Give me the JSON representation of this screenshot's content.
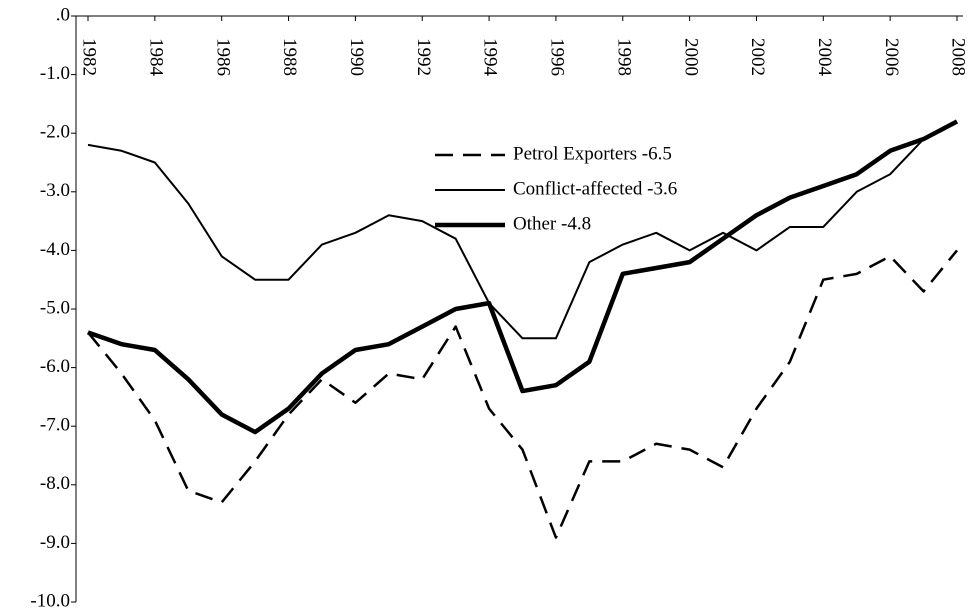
{
  "chart_data": {
    "type": "line",
    "x": [
      1982,
      1983,
      1984,
      1985,
      1986,
      1987,
      1988,
      1989,
      1990,
      1991,
      1992,
      1993,
      1994,
      1995,
      1996,
      1997,
      1998,
      1999,
      2000,
      2001,
      2002,
      2003,
      2004,
      2005,
      2006,
      2007,
      2008
    ],
    "xlim": [
      1982,
      2008
    ],
    "xticks": [
      1982,
      1984,
      1986,
      1988,
      1990,
      1992,
      1994,
      1996,
      1998,
      2000,
      2002,
      2004,
      2006,
      2008
    ],
    "ylim": [
      -10,
      0
    ],
    "yticks": [
      {
        "value": 0,
        "label": ".0"
      },
      {
        "value": -1,
        "label": "-1.0"
      },
      {
        "value": -2,
        "label": "-2.0"
      },
      {
        "value": -3,
        "label": "-3.0"
      },
      {
        "value": -4,
        "label": "-4.0"
      },
      {
        "value": -5,
        "label": "-5.0"
      },
      {
        "value": -6,
        "label": "-6.0"
      },
      {
        "value": -7,
        "label": "-7.0"
      },
      {
        "value": -8,
        "label": "-8.0"
      },
      {
        "value": -9,
        "label": "-9.0"
      },
      {
        "value": -10,
        "label": "-10.0"
      }
    ],
    "series": [
      {
        "name": "Petrol Exporters -6.5",
        "color": "#000000",
        "style": "dashed",
        "values": [
          -5.4,
          -6.1,
          -6.9,
          -8.1,
          -8.3,
          -7.6,
          -6.8,
          -6.2,
          -6.6,
          -6.1,
          -6.2,
          -5.3,
          -6.7,
          -7.4,
          -8.9,
          -7.6,
          -7.6,
          -7.3,
          -7.4,
          -7.7,
          -6.7,
          -5.9,
          -4.5,
          -4.4,
          -4.1,
          -4.7,
          -4.0
        ]
      },
      {
        "name": "Conflict-affected -3.6",
        "color": "#000000",
        "style": "thin",
        "values": [
          -2.2,
          -2.3,
          -2.5,
          -3.2,
          -4.1,
          -4.5,
          -4.5,
          -3.9,
          -3.7,
          -3.4,
          -3.5,
          -3.8,
          -4.9,
          -5.5,
          -5.5,
          -4.2,
          -3.9,
          -3.7,
          -4.0,
          -3.7,
          -4.0,
          -3.6,
          -3.6,
          -3.0,
          -2.7,
          -2.1,
          -1.8
        ]
      },
      {
        "name": "Other -4.8",
        "color": "#000000",
        "style": "thick",
        "values": [
          -5.4,
          -5.6,
          -5.7,
          -6.2,
          -6.8,
          -7.1,
          -6.7,
          -6.1,
          -5.7,
          -5.6,
          -5.3,
          -5.0,
          -4.9,
          -6.4,
          -6.3,
          -5.9,
          -4.4,
          -4.3,
          -4.2,
          -3.8,
          -3.4,
          -3.1,
          -2.9,
          -2.7,
          -2.3,
          -2.1,
          -1.8
        ]
      }
    ]
  }
}
